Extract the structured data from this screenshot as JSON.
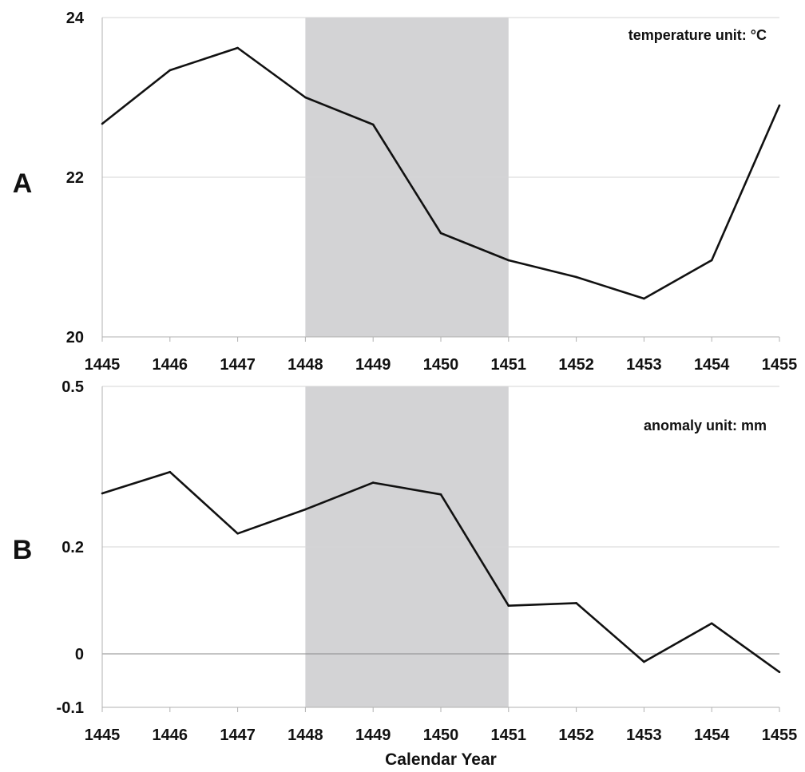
{
  "chart_data": [
    {
      "type": "line",
      "panel_label": "A",
      "annotation": "temperature unit: °C",
      "x": [
        1445,
        1446,
        1447,
        1448,
        1449,
        1450,
        1451,
        1452,
        1453,
        1454,
        1455
      ],
      "xticks": [
        "1445",
        "1446",
        "1447",
        "1448",
        "1449",
        "1450",
        "1451",
        "1452",
        "1453",
        "1454",
        "1455"
      ],
      "yticks": [
        "20",
        "22",
        "24"
      ],
      "ytick_values": [
        20,
        22,
        24
      ],
      "values": [
        22.67,
        23.34,
        23.62,
        23.0,
        22.66,
        21.3,
        20.96,
        20.75,
        20.48,
        20.96,
        22.9
      ],
      "ylim": [
        20,
        24
      ],
      "xlim": [
        1445,
        1455
      ],
      "shaded_range": [
        1448,
        1451
      ],
      "grid": true
    },
    {
      "type": "line",
      "panel_label": "B",
      "annotation": "anomaly unit: mm",
      "x": [
        1445,
        1446,
        1447,
        1448,
        1449,
        1450,
        1451,
        1452,
        1453,
        1454,
        1455
      ],
      "xticks": [
        "1445",
        "1446",
        "1447",
        "1448",
        "1449",
        "1450",
        "1451",
        "1452",
        "1453",
        "1454",
        "1455"
      ],
      "yticks": [
        "-0.1",
        "0",
        "0.2",
        "0.5"
      ],
      "ytick_values": [
        -0.1,
        0,
        0.2,
        0.5
      ],
      "values": [
        0.3,
        0.34,
        0.225,
        0.27,
        0.32,
        0.298,
        0.09,
        0.095,
        -0.015,
        0.057,
        -0.034
      ],
      "ylim": [
        -0.1,
        0.5
      ],
      "xlim": [
        1445,
        1455
      ],
      "shaded_range": [
        1448,
        1451
      ],
      "xlabel": "Calendar Year",
      "grid": true
    }
  ]
}
